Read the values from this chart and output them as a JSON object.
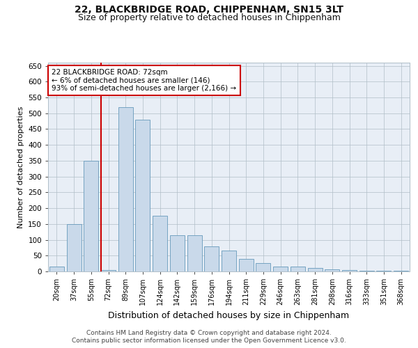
{
  "title1": "22, BLACKBRIDGE ROAD, CHIPPENHAM, SN15 3LT",
  "title2": "Size of property relative to detached houses in Chippenham",
  "xlabel": "Distribution of detached houses by size in Chippenham",
  "ylabel": "Number of detached properties",
  "categories": [
    "20sqm",
    "37sqm",
    "55sqm",
    "72sqm",
    "89sqm",
    "107sqm",
    "124sqm",
    "142sqm",
    "159sqm",
    "176sqm",
    "194sqm",
    "211sqm",
    "229sqm",
    "246sqm",
    "263sqm",
    "281sqm",
    "298sqm",
    "316sqm",
    "333sqm",
    "351sqm",
    "368sqm"
  ],
  "values": [
    15,
    150,
    350,
    5,
    520,
    480,
    175,
    115,
    115,
    80,
    65,
    40,
    27,
    15,
    15,
    10,
    7,
    5,
    3,
    2,
    2
  ],
  "bar_color": "#c9d9ea",
  "bar_edge_color": "#6699bb",
  "vline_color": "#cc0000",
  "vline_index": 3,
  "annotation_text": "22 BLACKBRIDGE ROAD: 72sqm\n← 6% of detached houses are smaller (146)\n93% of semi-detached houses are larger (2,166) →",
  "annotation_box_color": "#ffffff",
  "annotation_box_edge": "#cc0000",
  "ylim": [
    0,
    660
  ],
  "yticks": [
    0,
    50,
    100,
    150,
    200,
    250,
    300,
    350,
    400,
    450,
    500,
    550,
    600,
    650
  ],
  "footer1": "Contains HM Land Registry data © Crown copyright and database right 2024.",
  "footer2": "Contains public sector information licensed under the Open Government Licence v3.0.",
  "plot_bg_color": "#e8eef6",
  "fig_bg_color": "#ffffff",
  "grid_color": "#b0bec8"
}
